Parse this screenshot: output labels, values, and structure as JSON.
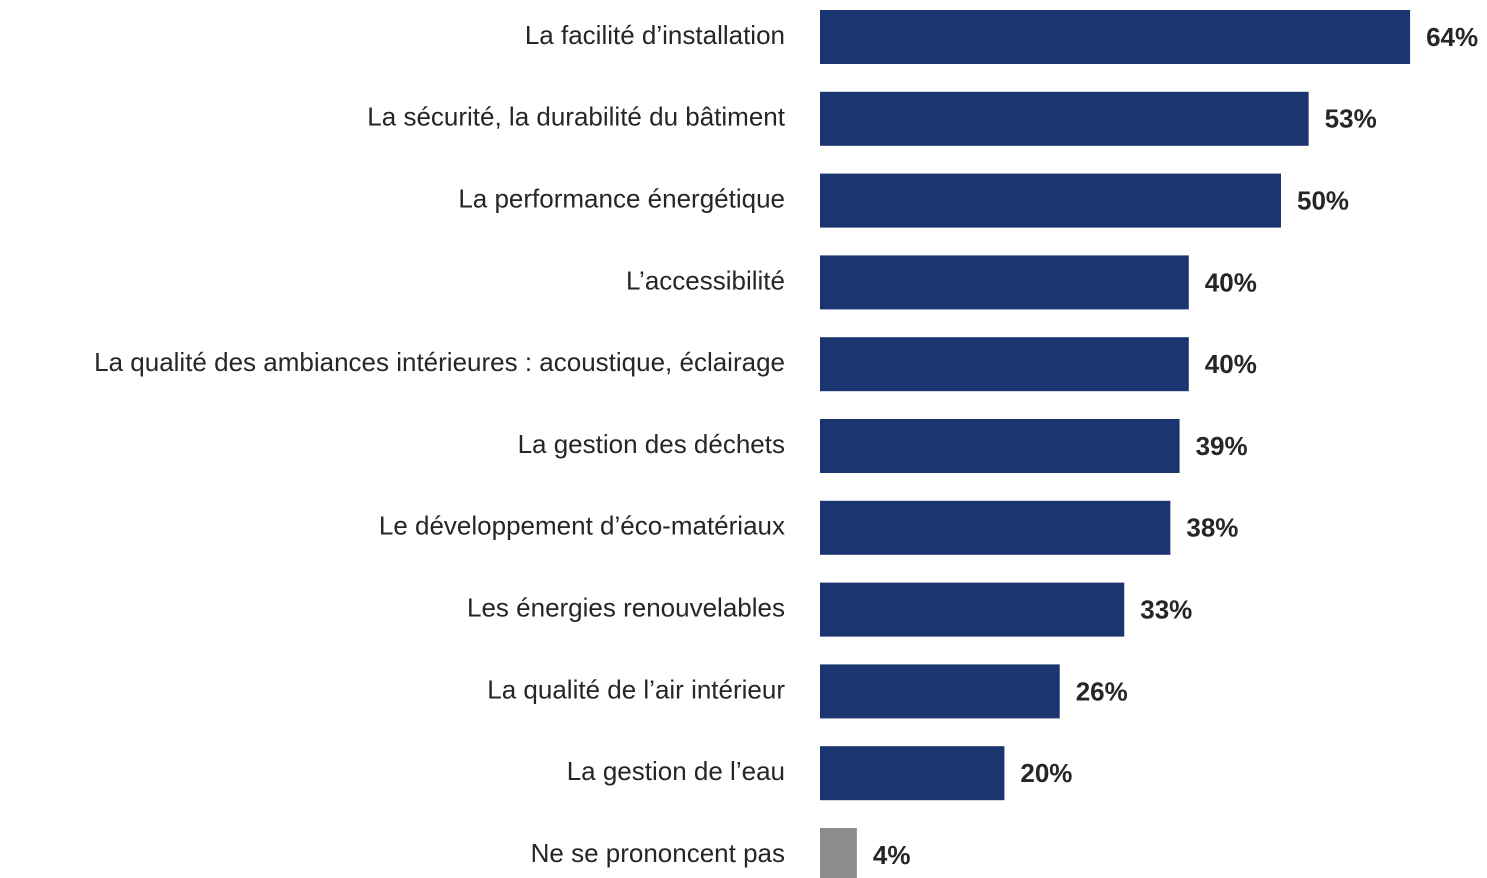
{
  "chart_data": {
    "type": "barh",
    "categories": [
      "La facilité d’installation",
      "La sécurité, la durabilité du bâtiment",
      "La performance énergétique",
      "L’accessibilité",
      "La qualité des ambiances intérieures : acoustique, éclairage",
      "La gestion des déchets",
      "Le développement d’éco-matériaux",
      "Les énergies renouvelables",
      "La qualité de l’air intérieur",
      "La gestion de l’eau",
      "Ne se prononcent pas"
    ],
    "values": [
      64,
      53,
      50,
      40,
      40,
      39,
      38,
      33,
      26,
      20,
      4
    ],
    "value_labels": [
      "64%",
      "53%",
      "50%",
      "40%",
      "40%",
      "39%",
      "38%",
      "33%",
      "26%",
      "20%",
      "4%"
    ],
    "colors": [
      "#1b3570",
      "#1b3570",
      "#1b3570",
      "#1b3570",
      "#1b3570",
      "#1b3570",
      "#1b3570",
      "#1b3570",
      "#1b3570",
      "#1b3570",
      "#8c8c8c"
    ]
  }
}
